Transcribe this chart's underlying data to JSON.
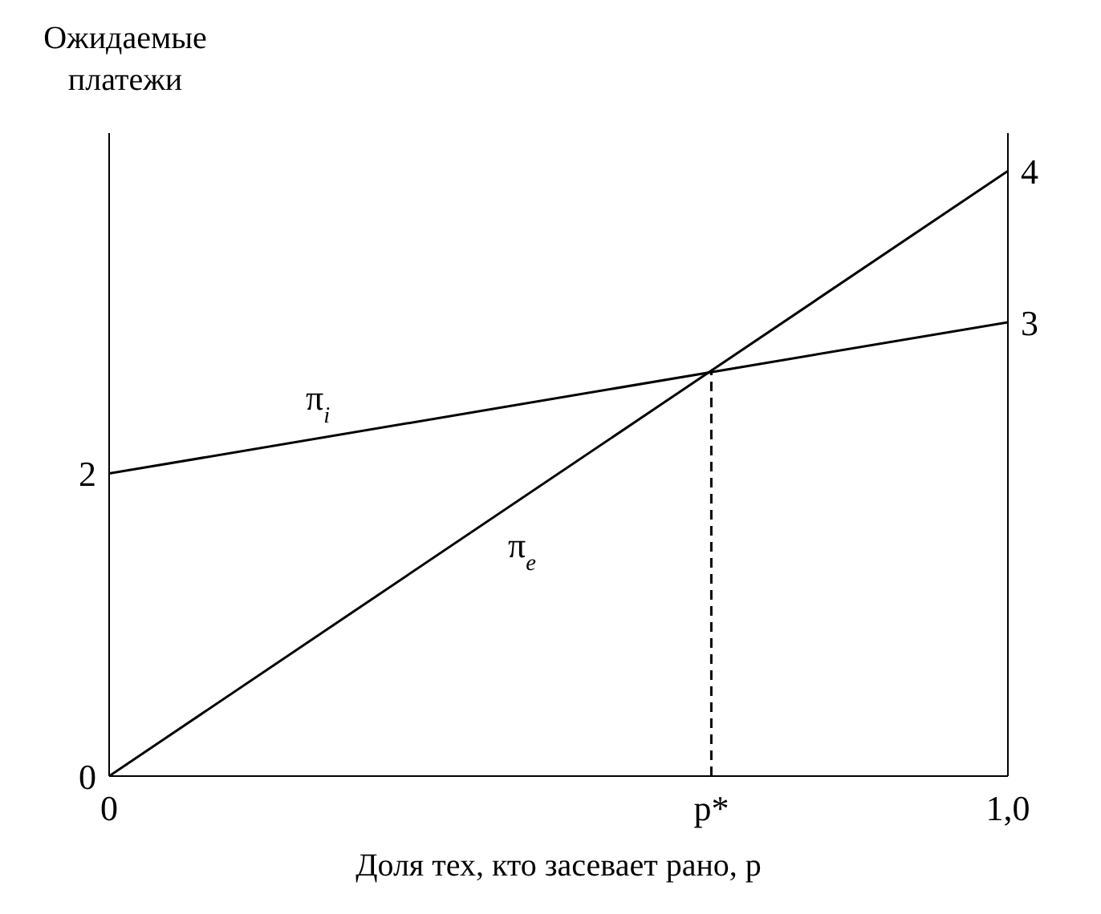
{
  "chart_data": {
    "type": "line",
    "ylabel": "Ожидаемые платежи",
    "xlabel": "Доля тех, кто засевает рано, p",
    "xlim": [
      0,
      1
    ],
    "xticks": [
      0,
      {
        "value": 0.67,
        "label": "p*"
      },
      {
        "value": 1,
        "label": "1,0"
      }
    ],
    "ylim": [
      0,
      4.25
    ],
    "yticks": [
      0,
      2
    ],
    "y2lim": [
      0,
      4.25
    ],
    "y2ticks": [
      3,
      4
    ],
    "series": [
      {
        "name": "π$_{i}$",
        "color": "#000000",
        "x": [
          0,
          1
        ],
        "values": [
          2,
          3
        ]
      },
      {
        "name": "π$_{e}$",
        "color": "#000000",
        "x": [
          0,
          1
        ],
        "values": [
          0,
          4
        ]
      },
      {
        "color": "#000000",
        "x": [
          0.67,
          0.67
        ],
        "values": [
          0,
          2.67
        ],
        "line_style": "dashed"
      }
    ],
    "grid": false,
    "marker": "none"
  }
}
